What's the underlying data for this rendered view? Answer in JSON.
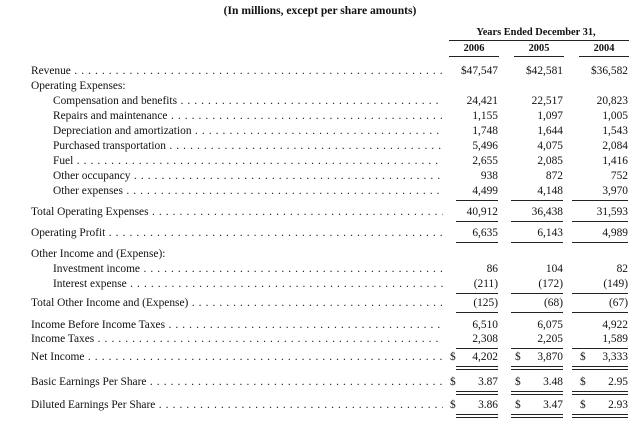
{
  "header": {
    "subtitle": "(In millions, except per share amounts)",
    "column_group": "Years Ended December 31,",
    "years": [
      "2006",
      "2005",
      "2004"
    ]
  },
  "rows": [
    {
      "label": "Revenue",
      "values": [
        "$47,547",
        "$42,581",
        "$36,582"
      ]
    },
    {
      "label": "Operating Expenses:"
    },
    {
      "label": "Compensation and benefits",
      "values": [
        "24,421",
        "22,517",
        "20,823"
      ]
    },
    {
      "label": "Repairs and maintenance",
      "values": [
        "1,155",
        "1,097",
        "1,005"
      ]
    },
    {
      "label": "Depreciation and amortization",
      "values": [
        "1,748",
        "1,644",
        "1,543"
      ]
    },
    {
      "label": "Purchased transportation",
      "values": [
        "5,496",
        "4,075",
        "2,084"
      ]
    },
    {
      "label": "Fuel",
      "values": [
        "2,655",
        "2,085",
        "1,416"
      ]
    },
    {
      "label": "Other occupancy",
      "values": [
        "938",
        "872",
        "752"
      ]
    },
    {
      "label": "Other expenses",
      "values": [
        "4,499",
        "4,148",
        "3,970"
      ]
    },
    {
      "label": "Total Operating Expenses",
      "values": [
        "40,912",
        "36,438",
        "31,593"
      ]
    },
    {
      "label": "Operating Profit",
      "values": [
        "6,635",
        "6,143",
        "4,989"
      ]
    },
    {
      "label": "Other Income and (Expense):"
    },
    {
      "label": "Investment income",
      "values": [
        "86",
        "104",
        "82"
      ]
    },
    {
      "label": "Interest expense",
      "values": [
        "(211)",
        "(172)",
        "(149)"
      ]
    },
    {
      "label": "Total Other Income and (Expense)",
      "values": [
        "(125)",
        "(68)",
        "(67)"
      ]
    },
    {
      "label": "Income Before Income Taxes",
      "values": [
        "6,510",
        "6,075",
        "4,922"
      ]
    },
    {
      "label": "Income Taxes",
      "values": [
        "2,308",
        "2,205",
        "1,589"
      ]
    },
    {
      "label": "Net Income",
      "values": [
        "4,202",
        "3,870",
        "3,333"
      ],
      "currency": "$"
    },
    {
      "label": "Basic Earnings Per Share",
      "values": [
        "3.87",
        "3.48",
        "2.95"
      ],
      "currency": "$"
    },
    {
      "label": "Diluted Earnings Per Share",
      "values": [
        "3.86",
        "3.47",
        "2.93"
      ],
      "currency": "$"
    }
  ]
}
